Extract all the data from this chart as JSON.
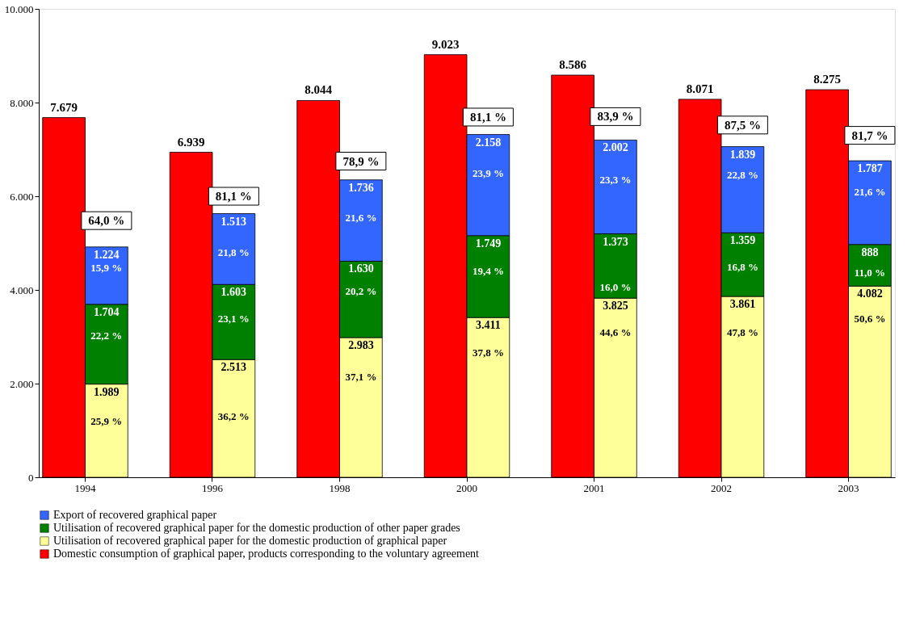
{
  "chart_data": {
    "type": "bar",
    "categories": [
      "1994",
      "1996",
      "1998",
      "2000",
      "2001",
      "2002",
      "2003"
    ],
    "series": [
      {
        "name": "Domestic consumption of graphical paper, products corresponding to the voluntary agreement",
        "color": "#ff0000",
        "base": [
          0,
          0,
          0,
          0,
          0,
          0,
          0
        ],
        "values": [
          7679,
          6939,
          8044,
          9023,
          8586,
          8071,
          8275
        ],
        "value_labels": [
          "7.679",
          "6.939",
          "8.044",
          "9.023",
          "8.586",
          "8.071",
          "8.275"
        ]
      },
      {
        "name": "Utilisation of recovered graphical paper for the domestic production of graphical paper",
        "color": "#ffff99",
        "base": [
          0,
          0,
          0,
          0,
          0,
          0,
          0
        ],
        "values": [
          1989,
          2513,
          2983,
          3411,
          3825,
          3861,
          4082
        ],
        "value_labels": [
          "1.989",
          "2.513",
          "2.983",
          "3.411",
          "3.825",
          "3.861",
          "4.082"
        ]
      },
      {
        "name": "Utilisation of recovered graphical paper for the domestic production of other paper grades",
        "color": "#008000",
        "base": [
          1989,
          2513,
          2983,
          3411,
          3825,
          3861,
          4082
        ],
        "values": [
          1704,
          1603,
          1630,
          1749,
          1373,
          1359,
          888
        ],
        "value_labels": [
          "1.704",
          "1.603",
          "1.630",
          "1.749",
          "1.373",
          "1.359",
          "888"
        ]
      },
      {
        "name": "Export of recovered graphical paper",
        "color": "#3366ff",
        "base": [
          3693,
          4116,
          4613,
          5160,
          5198,
          5220,
          4970
        ],
        "values": [
          1224,
          1513,
          1736,
          2158,
          2002,
          1839,
          1787
        ],
        "value_labels": [
          "1.224",
          "1.513",
          "1.736",
          "2.158",
          "2.002",
          "1.839",
          "1.787"
        ]
      }
    ],
    "ylim": [
      0,
      10000
    ],
    "yticks": [
      0,
      {
        "value": 2000,
        "label": "2.000"
      },
      {
        "value": 4000,
        "label": "4.000"
      },
      {
        "value": 6000,
        "label": "6.000"
      },
      {
        "value": 8000,
        "label": "8.000"
      },
      {
        "value": 10000,
        "label": "10.000"
      }
    ],
    "grid": false,
    "legend": "bottom",
    "annotations": [
      {
        "text": "25,9 %",
        "x": "1994",
        "y": 1190
      },
      {
        "text": "22,2 %",
        "x": "1994",
        "y": 3010
      },
      {
        "text": "15,9 %",
        "x": "1994",
        "y": 4470
      },
      {
        "text": "64,0 %",
        "x": "1994",
        "y": 5480
      },
      {
        "text": "36,2 %",
        "x": "1996",
        "y": 1290
      },
      {
        "text": "23,1 %",
        "x": "1996",
        "y": 3380
      },
      {
        "text": "21,8 %",
        "x": "1996",
        "y": 4800
      },
      {
        "text": "81,1 %",
        "x": "1996",
        "y": 6000
      },
      {
        "text": "37,1 %",
        "x": "1998",
        "y": 2140
      },
      {
        "text": "20,2 %",
        "x": "1998",
        "y": 3960
      },
      {
        "text": "21,6 %",
        "x": "1998",
        "y": 5530
      },
      {
        "text": "78,9 %",
        "x": "1998",
        "y": 6750
      },
      {
        "text": "37,8 %",
        "x": "2000",
        "y": 2650
      },
      {
        "text": "19,4 %",
        "x": "2000",
        "y": 4400
      },
      {
        "text": "23,9 %",
        "x": "2000",
        "y": 6480
      },
      {
        "text": "81,1 %",
        "x": "2000",
        "y": 7690
      },
      {
        "text": "44,6 %",
        "x": "2001",
        "y": 3080
      },
      {
        "text": "16,0 %",
        "x": "2001",
        "y": 4050
      },
      {
        "text": "23,3 %",
        "x": "2001",
        "y": 6340
      },
      {
        "text": "83,9 %",
        "x": "2001",
        "y": 7700
      },
      {
        "text": "47,8 %",
        "x": "2002",
        "y": 3080
      },
      {
        "text": "16,8 %",
        "x": "2002",
        "y": 4490
      },
      {
        "text": "22,8 %",
        "x": "2002",
        "y": 6450
      },
      {
        "text": "87,5 %",
        "x": "2002",
        "y": 7520
      },
      {
        "text": "50,6 %",
        "x": "2003",
        "y": 3380
      },
      {
        "text": "11,0 %",
        "x": "2003",
        "y": 4370
      },
      {
        "text": "21,6 %",
        "x": "2003",
        "y": 6090
      },
      {
        "text": "81,7 %",
        "x": "2003",
        "y": 7300
      }
    ]
  }
}
